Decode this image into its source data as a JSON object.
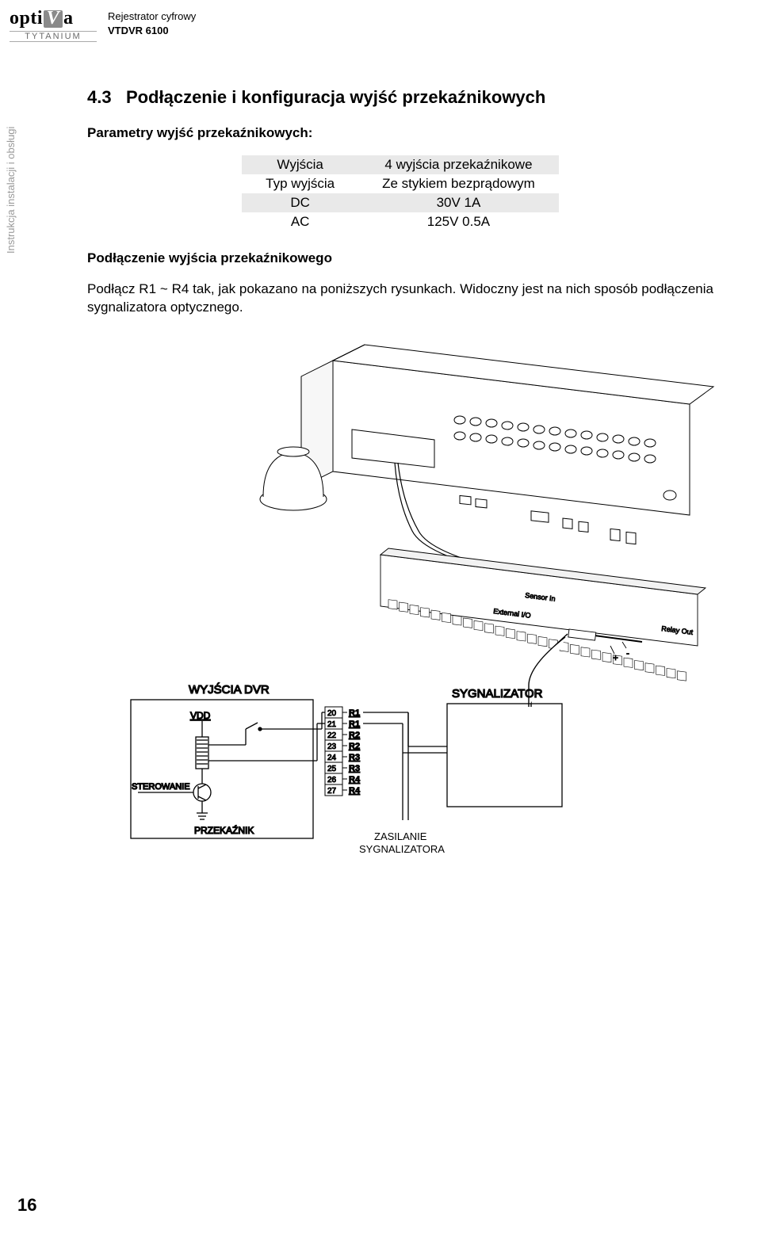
{
  "header": {
    "logo_text_pre": "opti",
    "logo_text_v": "V",
    "logo_text_post": "a",
    "logo_sub": "TYTANIUM",
    "line1": "Rejestrator cyfrowy",
    "line2": "VTDVR 6100"
  },
  "side_label": "Instrukcja instalacji i obsługi",
  "section": {
    "number": "4.3",
    "title": "Podłączenie i konfiguracja wyjść przekaźnikowych"
  },
  "params_heading": "Parametry wyjść przekaźnikowych:",
  "params_table": {
    "rows": [
      {
        "label": "Wyjścia",
        "value": "4 wyjścia przekaźnikowe"
      },
      {
        "label": "Typ wyjścia",
        "value": "Ze stykiem bezprądowym"
      },
      {
        "label": "DC",
        "value": "30V 1A"
      },
      {
        "label": "AC",
        "value": "125V 0.5A"
      }
    ]
  },
  "connection_heading": "Podłączenie wyjścia przekaźnikowego",
  "body_text": "Podłącz R1 ~ R4 tak, jak pokazano na poniższych rysunkach. Widoczny jest na nich sposób podłączenia sygnalizatora optycznego.",
  "diagram": {
    "dvr_box_label": "WYJŚCIA DVR",
    "control_label": "STEROWANIE",
    "relay_label": "PRZEKAŹNIK",
    "vdd_label": "VDD",
    "signal_box_label": "SYGNALIZATOR",
    "power_label_1": "ZASILANIE",
    "power_label_2": "SYGNALIZATORA",
    "terminals": [
      {
        "num": "20",
        "name": "R1"
      },
      {
        "num": "21",
        "name": "R1"
      },
      {
        "num": "22",
        "name": "R2"
      },
      {
        "num": "23",
        "name": "R2"
      },
      {
        "num": "24",
        "name": "R3"
      },
      {
        "num": "25",
        "name": "R3"
      },
      {
        "num": "26",
        "name": "R4"
      },
      {
        "num": "27",
        "name": "R4"
      }
    ],
    "device_labels": {
      "sensor_in": "Sensor In",
      "external_io": "External I/O",
      "relay_out": "Relay Out"
    },
    "colors": {
      "stroke": "#000000",
      "fill_light": "#ffffff",
      "fill_gray": "#e9e9e9"
    }
  },
  "page_number": "16"
}
